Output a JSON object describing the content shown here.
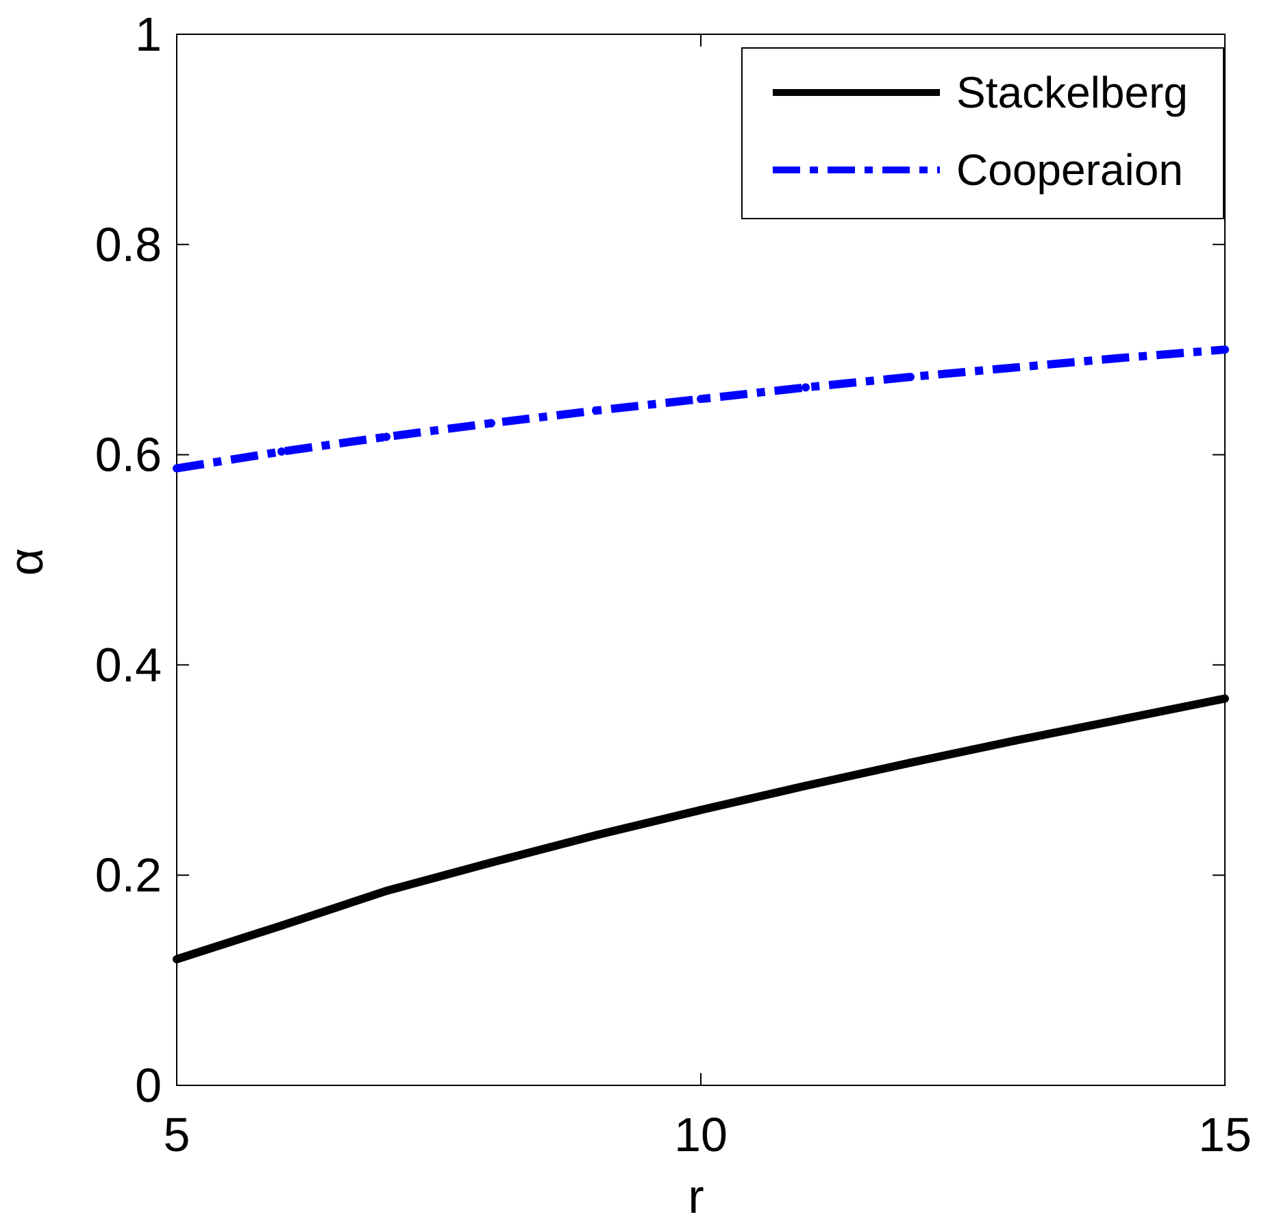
{
  "chart_data": {
    "type": "line",
    "title": "",
    "xlabel": "r",
    "ylabel": "α",
    "xlim": [
      5,
      15
    ],
    "ylim": [
      0,
      1
    ],
    "xticks": [
      5,
      10,
      15
    ],
    "xtick_labels": [
      "5",
      "10",
      "15"
    ],
    "yticks": [
      0,
      0.2,
      0.4,
      0.6,
      0.8,
      1
    ],
    "ytick_labels": [
      "0",
      "0.2",
      "0.4",
      "0.6",
      "0.8",
      "1"
    ],
    "grid": false,
    "legend_position": "top-right",
    "series": [
      {
        "name": "Stackelberg",
        "color": "#000000",
        "line_style": "solid",
        "x": [
          5,
          6,
          7,
          8,
          9,
          10,
          11,
          12,
          13,
          14,
          15
        ],
        "y": [
          0.12,
          0.152,
          0.185,
          0.212,
          0.238,
          0.262,
          0.285,
          0.307,
          0.328,
          0.348,
          0.368
        ]
      },
      {
        "name": "Cooperaion",
        "color": "#0000ff",
        "line_style": "dash-dot",
        "x": [
          5,
          6,
          7,
          8,
          9,
          10,
          11,
          12,
          13,
          14,
          15
        ],
        "y": [
          0.587,
          0.603,
          0.617,
          0.63,
          0.642,
          0.653,
          0.664,
          0.674,
          0.683,
          0.692,
          0.7
        ]
      }
    ]
  }
}
